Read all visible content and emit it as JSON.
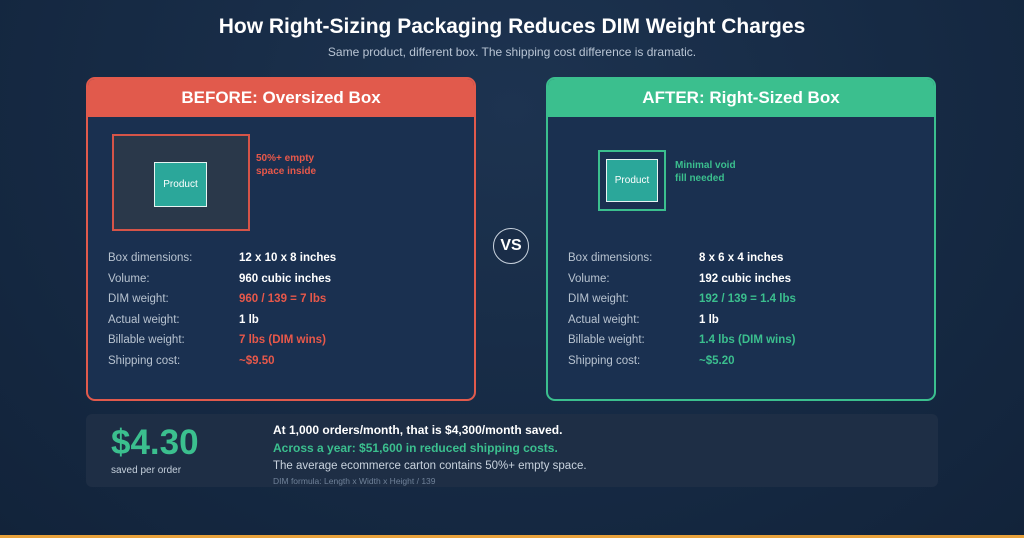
{
  "title": "How Right-Sizing Packaging Reduces DIM Weight Charges",
  "subtitle": "Same product, different box. The shipping cost difference is dramatic.",
  "colors": {
    "before": "#e15a4c",
    "after": "#3bbf8e",
    "background": "#162a44",
    "accent_bar": "#e9a23b"
  },
  "before": {
    "header": "BEFORE: Oversized Box",
    "product_label": "Product",
    "note_line1": "50%+ empty",
    "note_line2": "space inside",
    "rows": [
      {
        "label": "Box dimensions:",
        "value": "12 x 10 x 8 inches"
      },
      {
        "label": "Volume:",
        "value": "960 cubic inches"
      },
      {
        "label": "DIM weight:",
        "value": "960 / 139 = 7 lbs"
      },
      {
        "label": "Actual weight:",
        "value": "1 lb"
      },
      {
        "label": "Billable weight:",
        "value": "7 lbs (DIM wins)"
      },
      {
        "label": "Shipping cost:",
        "value": "~$9.50"
      }
    ]
  },
  "vs_label": "VS",
  "after": {
    "header": "AFTER: Right-Sized Box",
    "product_label": "Product",
    "note_line1": "Minimal void",
    "note_line2": "fill needed",
    "rows": [
      {
        "label": "Box dimensions:",
        "value": "8 x 6 x 4 inches"
      },
      {
        "label": "Volume:",
        "value": "192 cubic inches"
      },
      {
        "label": "DIM weight:",
        "value": "192 / 139 = 1.4 lbs"
      },
      {
        "label": "Actual weight:",
        "value": "1 lb"
      },
      {
        "label": "Billable weight:",
        "value": "1.4 lbs (DIM wins)"
      },
      {
        "label": "Shipping cost:",
        "value": "~$5.20"
      }
    ]
  },
  "summary": {
    "amount": "$4.30",
    "amount_caption": "saved per order",
    "line1": "At 1,000 orders/month, that is $4,300/month saved.",
    "line2": "Across a year: $51,600 in reduced shipping costs.",
    "line3": "The average ecommerce carton contains 50%+ empty space.",
    "formula": "DIM formula: Length x Width x Height / 139"
  }
}
